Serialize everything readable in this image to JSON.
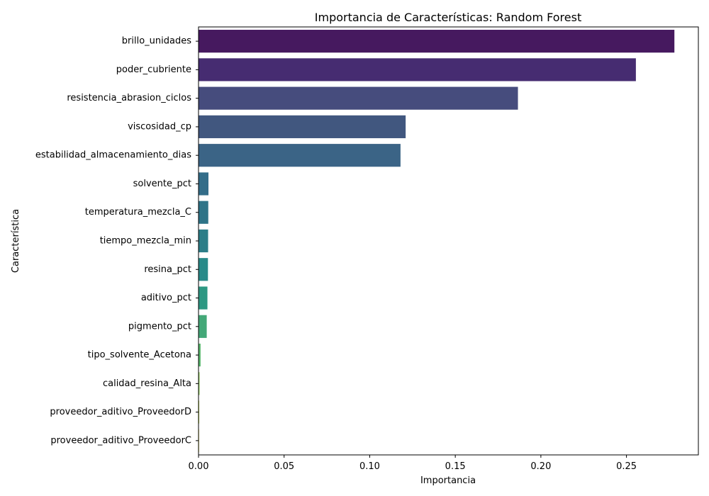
{
  "chart_data": {
    "type": "bar",
    "orientation": "horizontal",
    "title": "Importancia de Características: Random Forest",
    "xlabel": "Importancia",
    "ylabel": "Característica",
    "xlim": [
      0,
      0.292
    ],
    "x_ticks": [
      0.0,
      0.05,
      0.1,
      0.15,
      0.2,
      0.25
    ],
    "x_tick_labels": [
      "0.00",
      "0.05",
      "0.10",
      "0.15",
      "0.20",
      "0.25"
    ],
    "grid": false,
    "categories": [
      "brillo_unidades",
      "poder_cubriente",
      "resistencia_abrasion_ciclos",
      "viscosidad_cp",
      "estabilidad_almacenamiento_dias",
      "solvente_pct",
      "temperatura_mezcla_C",
      "tiempo_mezcla_min",
      "resina_pct",
      "aditivo_pct",
      "pigmento_pct",
      "tipo_solvente_Acetona",
      "calidad_resina_Alta",
      "proveedor_aditivo_ProveedorD",
      "proveedor_aditivo_ProveedorC"
    ],
    "values": [
      0.278,
      0.2555,
      0.1866,
      0.121,
      0.118,
      0.0058,
      0.0057,
      0.0056,
      0.0055,
      0.0052,
      0.0048,
      0.0012,
      0.0006,
      0.0004,
      0.0003
    ],
    "colors": [
      "#46195f",
      "#462c71",
      "#464c7d",
      "#41577f",
      "#3b6486",
      "#336d89",
      "#2e7488",
      "#2c7e88",
      "#288a89",
      "#2d9883",
      "#43a878",
      "#57b66b",
      "#8bca54",
      "#b9d540",
      "#e4dd26"
    ]
  }
}
